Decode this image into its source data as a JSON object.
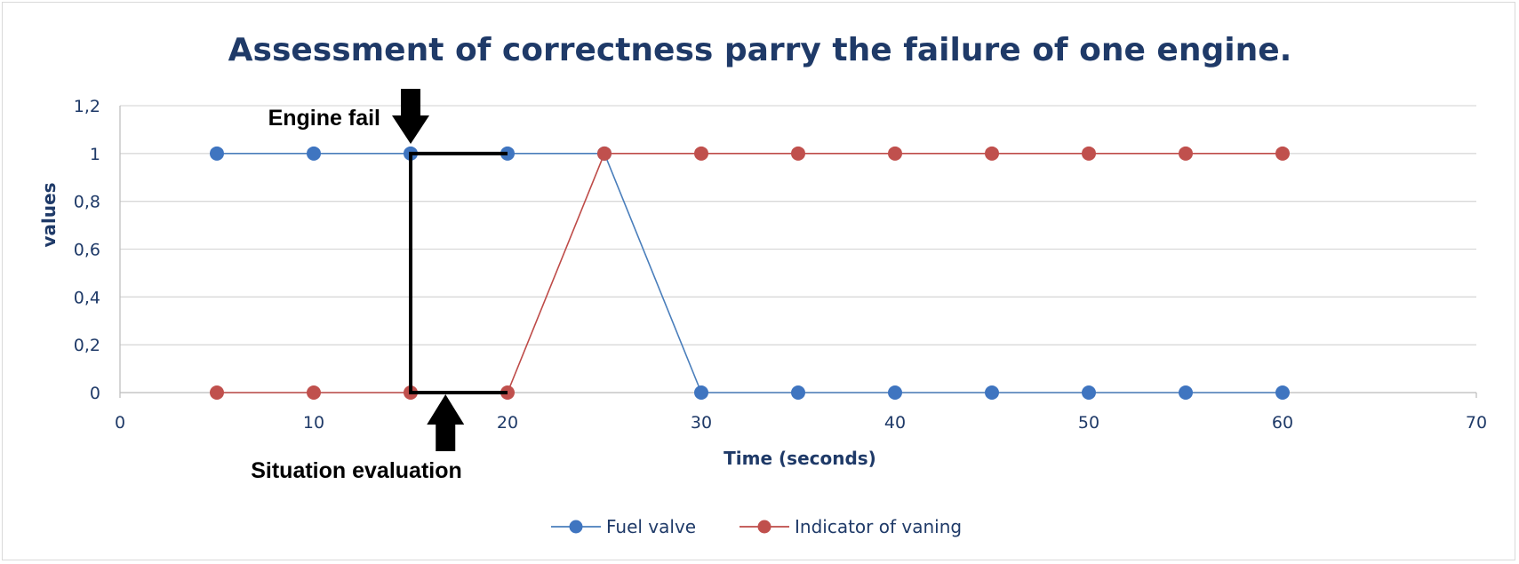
{
  "chart_data": {
    "type": "line",
    "title": "Assessment of correctness parry the failure of one engine.",
    "xlabel": "Time (seconds)",
    "ylabel": "values",
    "xlim": [
      0,
      70
    ],
    "ylim": [
      0,
      1.2
    ],
    "x_ticks": [
      0,
      10,
      20,
      30,
      40,
      50,
      60,
      70
    ],
    "x_tick_labels": [
      "0",
      "10",
      "20",
      "30",
      "40",
      "50",
      "60",
      "70"
    ],
    "y_ticks": [
      0,
      0.2,
      0.4,
      0.6,
      0.8,
      1,
      1.2
    ],
    "y_tick_labels": [
      "0",
      "0,2",
      "0,4",
      "0,6",
      "0,8",
      "1",
      "1,2"
    ],
    "grid": "horizontal",
    "legend_position": "bottom",
    "x": [
      5,
      10,
      15,
      20,
      25,
      30,
      35,
      40,
      45,
      50,
      55,
      60
    ],
    "series": [
      {
        "name": "Fuel valve",
        "color": "#4a7ebb",
        "marker_color": "#3f75c0",
        "values": [
          1,
          1,
          1,
          1,
          1,
          0,
          0,
          0,
          0,
          0,
          0,
          0
        ]
      },
      {
        "name": "Indicator of vaning",
        "color": "#be4b48",
        "marker_color": "#c0504d",
        "values": [
          0,
          0,
          0,
          0,
          1,
          1,
          1,
          1,
          1,
          1,
          1,
          1
        ]
      }
    ],
    "annotations": [
      {
        "text": "Engine fail",
        "arrow": "down",
        "at_x": 15
      },
      {
        "text": "Situation evaluation",
        "arrow": "up",
        "at_x": 16.8
      }
    ],
    "bracket": {
      "x_start": 15,
      "x_end": 20,
      "y_top": 1,
      "y_bottom": 0
    }
  }
}
